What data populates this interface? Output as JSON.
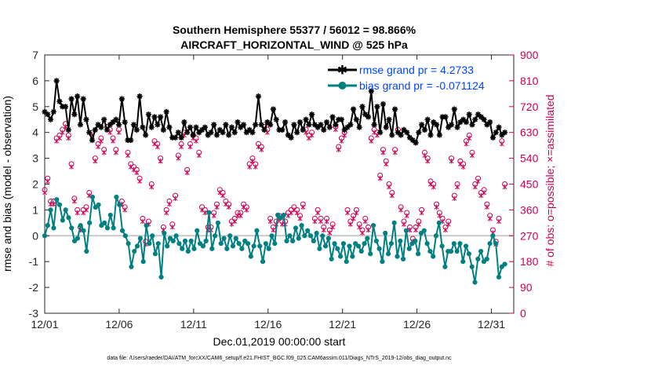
{
  "chart_data": {
    "type": "line",
    "title_line1": "Southern Hemisphere 55377 / 56012 = 98.866%",
    "title_line2": "AIRCRAFT_HORIZONTAL_WIND @ 525 hPa",
    "xlabel": "Dec.01,2019 00:00:00 start",
    "ylabel_left": "rmse and bias (model - observation)",
    "ylabel_right": "# of obs: o=possible; ×=assimilated",
    "footer": "data file: /Users/raeder/DAI/ATM_forcXX/CAM6_setup/f.e21.FHIST_BGC.f09_025.CAM6assim.011/Diags_NTrS_2019-12/obs_diag_output.nc",
    "xlim": [
      1,
      32.5
    ],
    "ylim_left": [
      -3,
      7
    ],
    "ylim_right": [
      0,
      900
    ],
    "x_ticks": [
      1,
      6,
      11,
      16,
      21,
      26,
      31
    ],
    "x_tick_labels": [
      "12/01",
      "12/06",
      "12/11",
      "12/16",
      "12/21",
      "12/26",
      "12/31"
    ],
    "y_ticks_left": [
      "-3",
      "-2",
      "-1",
      "0",
      "1",
      "2",
      "3",
      "4",
      "5",
      "6",
      "7"
    ],
    "y_ticks_right": [
      "0",
      "90",
      "180",
      "270",
      "360",
      "450",
      "540",
      "630",
      "720",
      "810",
      "900"
    ],
    "series": [
      {
        "name": "rmse grand pr = 4.2733",
        "color": "#000000",
        "marker": "*",
        "values": [
          4.8,
          4.7,
          4.5,
          4.8,
          6.0,
          5.2,
          5.0,
          5.0,
          4.1,
          5.3,
          4.7,
          5.4,
          4.3,
          5.3,
          4.5,
          4.0,
          3.7,
          4.1,
          4.3,
          4.2,
          4.5,
          4.1,
          4.3,
          4.4,
          4.5,
          4.3,
          5.3,
          4.4,
          3.7,
          3.7,
          4.3,
          4.1,
          5.4,
          4.2,
          3.9,
          4.7,
          4.2,
          4.6,
          4.3,
          4.6,
          4.1,
          4.8,
          4.2,
          3.8,
          3.8,
          4.0,
          3.8,
          4.4,
          4.0,
          4.2,
          3.9,
          4.2,
          4.0,
          4.1,
          4.2,
          3.9,
          4.0,
          4.3,
          3.9,
          4.1,
          4.0,
          4.3,
          3.9,
          4.2,
          4.0,
          4.4,
          4.2,
          4.3,
          4.0,
          4.1,
          4.0,
          4.3,
          5.4,
          4.3,
          4.1,
          4.4,
          4.3,
          4.9,
          4.5,
          4.1,
          4.1,
          4.4,
          3.9,
          3.8,
          4.3,
          4.0,
          4.4,
          4.1,
          4.5,
          4.3,
          4.7,
          4.3,
          4.2,
          4.3,
          4.1,
          4.4,
          4.2,
          4.6,
          4.3,
          4.5,
          4.5,
          4.1,
          4.2,
          4.3,
          4.9,
          4.5,
          4.2,
          5.0,
          4.7,
          4.6,
          5.6,
          4.3,
          5.0,
          4.0,
          5.1,
          4.2,
          4.5,
          3.9,
          4.9,
          4.0,
          3.9,
          4.1,
          4.0,
          3.8,
          3.7,
          3.6,
          4.0,
          4.3,
          4.1,
          4.5,
          3.9,
          4.4,
          4.3,
          3.9,
          4.6,
          4.6,
          4.2,
          4.3,
          4.9,
          4.2,
          4.4,
          4.5,
          4.4,
          4.7,
          4.3,
          4.5,
          4.7,
          4.6,
          4.5,
          4.3,
          4.4,
          3.8,
          4.0,
          4.2,
          3.9,
          4.0
        ]
      },
      {
        "name": "bias grand pr = -0.071124",
        "color": "#008080",
        "marker": "o",
        "values": [
          0.0,
          0.4,
          1.0,
          0.3,
          1.4,
          1.2,
          0.6,
          1.0,
          0.7,
          0.3,
          -0.2,
          -0.1,
          0.4,
          0.2,
          -0.6,
          0.5,
          1.5,
          1.1,
          1.2,
          0.4,
          0.5,
          0.3,
          0.8,
          0.3,
          1.5,
          1.2,
          0.2,
          0.0,
          -0.3,
          -1.2,
          -0.6,
          -0.4,
          -0.1,
          -1.0,
          0.4,
          -0.3,
          0.0,
          -0.7,
          -0.3,
          -1.6,
          0.1,
          -0.4,
          -0.1,
          -0.2,
          0.0,
          -0.3,
          -0.5,
          -0.2,
          -0.6,
          -0.2,
          -0.5,
          0.2,
          -0.3,
          -0.4,
          -0.2,
          0.9,
          -0.5,
          0.0,
          0.5,
          -0.3,
          -0.1,
          -0.5,
          0.0,
          -0.4,
          -0.1,
          -0.3,
          -0.5,
          -0.2,
          -0.3,
          -0.8,
          -0.4,
          0.2,
          -0.4,
          -1.0,
          -0.3,
          -0.5,
          0.0,
          -0.3,
          0.8,
          0.7,
          0.8,
          -0.2,
          0.0,
          -0.2,
          0.3,
          -0.1,
          0.4,
          0.0,
          0.2,
          0.0,
          -0.2,
          0.1,
          -0.5,
          0.0,
          -0.4,
          -0.1,
          -0.9,
          -0.3,
          -0.5,
          -0.8,
          -0.3,
          -1.0,
          -0.4,
          -0.8,
          -0.3,
          -0.4,
          -0.6,
          -0.3,
          -0.1,
          -0.7,
          0.4,
          -0.2,
          -0.5,
          -1.0,
          0.1,
          -0.7,
          -0.3,
          0.5,
          -0.8,
          -0.2,
          -0.9,
          0.2,
          -0.5,
          -0.3,
          -0.2,
          -0.7,
          0.1,
          0.2,
          -0.3,
          -0.6,
          -0.8,
          0.0,
          0.5,
          -0.4,
          -1.2,
          -0.6,
          -0.6,
          -0.3,
          -0.6,
          -0.3,
          -1.0,
          -0.4,
          -0.7,
          -1.2,
          -1.8,
          -0.9,
          -0.6,
          -1.0,
          -0.9,
          -0.3,
          0.0,
          -0.3,
          -1.6,
          -1.2,
          -1.1
        ]
      },
      {
        "name": "# possible",
        "axis": "right",
        "color": "#cc0055",
        "marker": "o",
        "values": [
          430,
          470,
          390,
          390,
          610,
          620,
          640,
          660,
          620,
          520,
          400,
          360,
          300,
          360,
          370,
          420,
          630,
          540,
          590,
          610,
          570,
          650,
          640,
          610,
          570,
          640,
          390,
          370,
          560,
          520,
          510,
          500,
          470,
          330,
          250,
          320,
          450,
          600,
          590,
          540,
          300,
          360,
          390,
          310,
          410,
          550,
          590,
          630,
          500,
          590,
          620,
          610,
          560,
          370,
          360,
          300,
          300,
          350,
          380,
          430,
          420,
          390,
          380,
          320,
          330,
          350,
          350,
          380,
          370,
          520,
          540,
          520,
          590,
          580,
          650,
          640,
          330,
          300,
          320,
          340,
          320,
          320,
          350,
          360,
          370,
          360,
          340,
          380,
          640,
          620,
          630,
          330,
          360,
          330,
          300,
          330,
          290,
          310,
          650,
          580,
          610,
          630,
          360,
          320,
          340,
          360,
          310,
          290,
          330,
          300,
          610,
          640,
          630,
          480,
          570,
          530,
          450,
          420,
          570,
          640,
          370,
          320,
          350,
          300,
          260,
          300,
          320,
          360,
          560,
          540,
          460,
          450,
          380,
          350,
          330,
          300,
          320,
          540,
          410,
          450,
          530,
          520,
          600,
          620,
          560,
          450,
          470,
          420,
          430,
          380,
          340,
          290,
          250,
          330,
          600,
          450
        ]
      },
      {
        "name": "# assimilated",
        "axis": "right",
        "color": "#cc0055",
        "marker": "x",
        "values": [
          420,
          460,
          380,
          380,
          600,
          610,
          630,
          650,
          610,
          510,
          390,
          350,
          290,
          350,
          360,
          410,
          620,
          530,
          580,
          600,
          560,
          640,
          630,
          600,
          560,
          630,
          380,
          360,
          550,
          510,
          500,
          490,
          460,
          320,
          240,
          310,
          440,
          590,
          580,
          530,
          290,
          350,
          380,
          300,
          400,
          540,
          580,
          620,
          490,
          580,
          610,
          600,
          550,
          360,
          350,
          290,
          290,
          340,
          370,
          420,
          410,
          380,
          370,
          310,
          320,
          340,
          340,
          370,
          360,
          510,
          530,
          510,
          580,
          570,
          640,
          630,
          320,
          290,
          310,
          330,
          310,
          310,
          340,
          350,
          360,
          350,
          330,
          370,
          630,
          610,
          620,
          320,
          350,
          320,
          290,
          320,
          280,
          300,
          640,
          570,
          600,
          620,
          350,
          310,
          330,
          350,
          300,
          280,
          320,
          290,
          600,
          630,
          620,
          470,
          560,
          520,
          440,
          410,
          560,
          630,
          360,
          310,
          340,
          290,
          250,
          290,
          310,
          350,
          550,
          530,
          450,
          440,
          370,
          340,
          320,
          290,
          310,
          530,
          400,
          440,
          520,
          510,
          590,
          610,
          550,
          440,
          460,
          410,
          420,
          370,
          330,
          280,
          240,
          320,
          590,
          440
        ]
      }
    ]
  }
}
